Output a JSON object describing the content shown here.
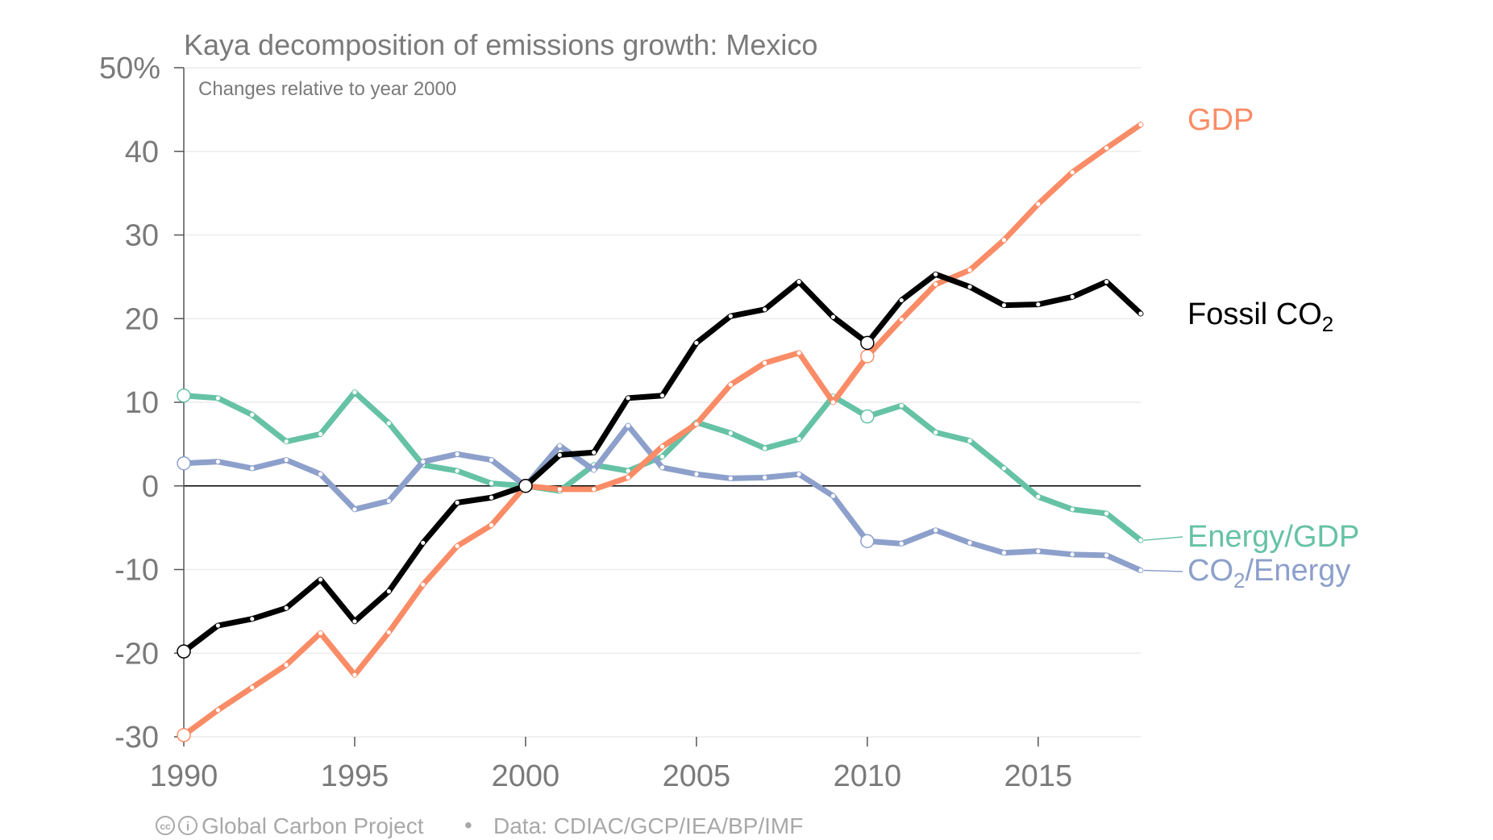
{
  "chart_data": {
    "type": "line",
    "title": "Kaya decomposition of emissions growth: Mexico",
    "subtitle": "Changes relative to year 2000",
    "y_unit_suffix": "%",
    "ylim": [
      -30,
      50
    ],
    "yticks": [
      50,
      40,
      30,
      20,
      10,
      0,
      -10,
      -20,
      -30
    ],
    "xlim": [
      1990,
      2018
    ],
    "xticks": [
      1990,
      1995,
      2000,
      2005,
      2010,
      2015
    ],
    "grid": true,
    "legend": "direct labels at right",
    "x": [
      1990,
      1991,
      1992,
      1993,
      1994,
      1995,
      1996,
      1997,
      1998,
      1999,
      2000,
      2001,
      2002,
      2003,
      2004,
      2005,
      2006,
      2007,
      2008,
      2009,
      2010,
      2011,
      2012,
      2013,
      2014,
      2015,
      2016,
      2017,
      2018
    ],
    "highlight_years": [
      1990,
      2000,
      2010
    ],
    "series": [
      {
        "key": "gdp",
        "label": "GDP",
        "color": "#f98c66",
        "values": [
          -29.8,
          -26.8,
          -24.1,
          -21.4,
          -17.6,
          -22.6,
          -17.5,
          -11.8,
          -7.2,
          -4.7,
          0,
          -0.4,
          -0.4,
          1.0,
          4.7,
          7.4,
          12.1,
          14.7,
          15.9,
          10.0,
          15.5,
          19.9,
          24.1,
          25.8,
          29.4,
          33.7,
          37.5,
          40.4,
          43.2
        ]
      },
      {
        "key": "fossil",
        "label_main": "Fossil CO",
        "label_sub": "2",
        "color": "#000000",
        "values": [
          -19.8,
          -16.7,
          -15.9,
          -14.6,
          -11.2,
          -16.2,
          -12.6,
          -6.8,
          -2.0,
          -1.4,
          0,
          3.7,
          4.0,
          10.5,
          10.8,
          17.1,
          20.3,
          21.1,
          24.4,
          20.2,
          17.1,
          22.2,
          25.3,
          23.8,
          21.6,
          21.7,
          22.6,
          24.4,
          20.6
        ]
      },
      {
        "key": "energy_gdp",
        "label": "Energy/GDP",
        "color": "#66c2a5",
        "values": [
          10.8,
          10.5,
          8.5,
          5.3,
          6.2,
          11.2,
          7.5,
          2.5,
          1.8,
          0.3,
          0,
          -0.6,
          2.5,
          1.8,
          3.5,
          7.6,
          6.3,
          4.5,
          5.6,
          10.7,
          8.3,
          9.6,
          6.4,
          5.4,
          2.1,
          -1.3,
          -2.8,
          -3.3,
          -6.5
        ]
      },
      {
        "key": "co2_energy",
        "label_pre": "CO",
        "label_sub": "2",
        "label_post": "/Energy",
        "color": "#8da0cb",
        "values": [
          2.7,
          2.9,
          2.1,
          3.1,
          1.4,
          -2.8,
          -1.8,
          2.9,
          3.8,
          3.1,
          0,
          4.8,
          1.9,
          7.2,
          2.2,
          1.4,
          0.9,
          1.0,
          1.4,
          -1.2,
          -6.6,
          -6.9,
          -5.3,
          -6.8,
          -8.0,
          -7.8,
          -8.2,
          -8.3,
          -10.1
        ]
      }
    ]
  },
  "footer": {
    "cc_badge": "cc",
    "by_badge": "i",
    "organization": "Global Carbon Project",
    "separator": "•",
    "source": "Data: CDIAC/GCP/IEA/BP/IMF"
  }
}
